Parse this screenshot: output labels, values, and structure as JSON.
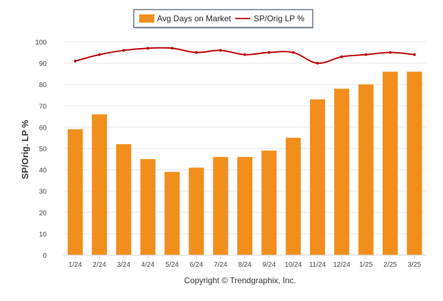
{
  "chart_data": {
    "type": "bar",
    "categories": [
      "1/24",
      "2/24",
      "3/24",
      "4/24",
      "5/24",
      "6/24",
      "7/24",
      "8/24",
      "9/24",
      "10/24",
      "11/24",
      "12/24",
      "1/25",
      "2/25",
      "3/25"
    ],
    "series": [
      {
        "name": "Avg Days on Market",
        "type": "bar",
        "color": "#f28f1c",
        "values": [
          59,
          66,
          52,
          45,
          39,
          41,
          46,
          46,
          49,
          55,
          73,
          78,
          80,
          86,
          86
        ]
      },
      {
        "name": "SP/Orig LP %",
        "type": "line",
        "color": "#c00000",
        "values": [
          91,
          94,
          96,
          97,
          97,
          95,
          96,
          94,
          95,
          95,
          90,
          93,
          94,
          95,
          94
        ]
      }
    ],
    "ylabel": "SP/Orig. LP %",
    "ylim": [
      0,
      100
    ],
    "yticks": [
      0,
      10,
      20,
      30,
      40,
      50,
      60,
      70,
      80,
      90,
      100
    ],
    "grid": true,
    "legend_position": "top-center"
  },
  "footer": {
    "copyright": "Copyright © Trendgraphix, Inc."
  }
}
